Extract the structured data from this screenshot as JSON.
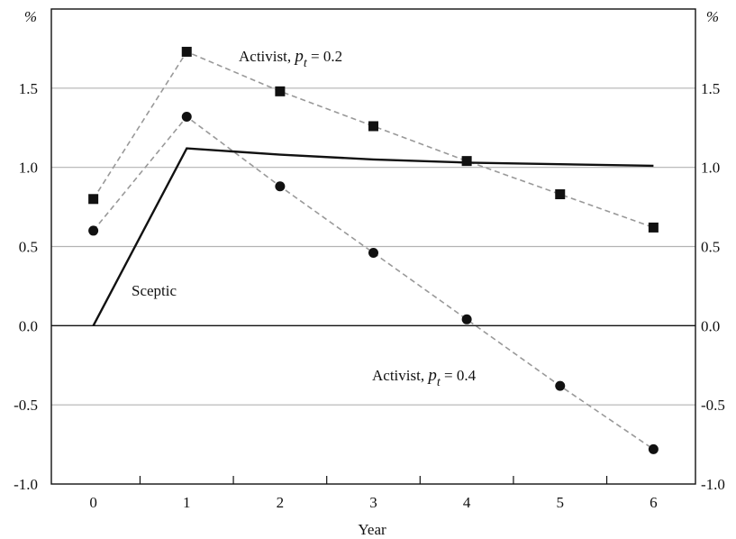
{
  "chart_data": {
    "type": "line",
    "xlabel": "Year",
    "y_unit_label": "%",
    "x": [
      0,
      1,
      2,
      3,
      4,
      5,
      6
    ],
    "xlim": [
      -0.45,
      6.45
    ],
    "ylim": [
      -1.0,
      2.0
    ],
    "y_ticks": [
      -1.0,
      -0.5,
      0.0,
      0.5,
      1.0,
      1.5
    ],
    "y_tick_labels": [
      "-1.0",
      "-0.5",
      "0.0",
      "0.5",
      "1.0",
      "1.5"
    ],
    "x_tick_labels": [
      "0",
      "1",
      "2",
      "3",
      "4",
      "5",
      "6"
    ],
    "grid": "horizontal",
    "series": [
      {
        "name": "Activist, p_t = 0.2",
        "label_main": "Activist, ",
        "label_var": "p",
        "label_sub": "t",
        "label_rest": " = 0.2",
        "style": "dashed-square",
        "color": "#111111",
        "line_color": "#999999",
        "values": [
          0.8,
          1.73,
          1.48,
          1.26,
          1.04,
          0.83,
          0.62
        ]
      },
      {
        "name": "Activist, p_t = 0.4",
        "label_main": "Activist, ",
        "label_var": "p",
        "label_sub": "t",
        "label_rest": " = 0.4",
        "style": "dashed-circle",
        "color": "#111111",
        "line_color": "#999999",
        "values": [
          0.6,
          1.32,
          0.88,
          0.46,
          0.04,
          -0.38,
          -0.78
        ]
      },
      {
        "name": "Sceptic",
        "label_main": "Sceptic",
        "style": "solid",
        "color": "#111111",
        "values": [
          0.0,
          1.12,
          1.08,
          1.05,
          1.03,
          1.02,
          1.01
        ]
      }
    ]
  }
}
